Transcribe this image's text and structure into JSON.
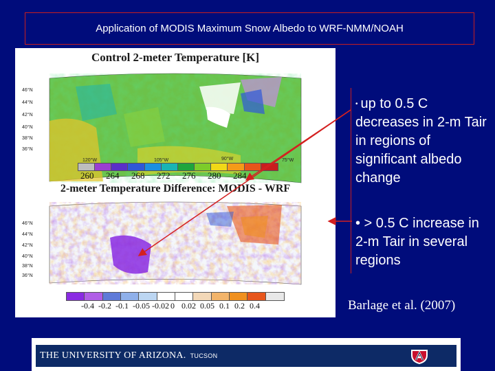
{
  "slide": {
    "title": "Application of MODIS Maximum Snow Albedo to WRF-NMM/NOAH",
    "bullet1_marker": "•",
    "bullet1_text": "up to 0.5 C decreases in 2-m Tair in regions of significant albedo change",
    "bullet2_text": "• > 0.5 C increase in 2-m Tair in several regions",
    "citation": "Barlage et al. (2007)"
  },
  "figure": {
    "top_title": "Control 2-meter Temperature [K]",
    "bottom_title": "2-meter Temperature Difference: MODIS - WRF",
    "top_lon_top": [
      "120°W",
      "105°W",
      "90°W",
      "75°W"
    ],
    "top_lon_bottom": [
      "120°W",
      "105°W",
      "90°W",
      "75°W"
    ],
    "lat_labels": [
      "46°N",
      "44°N",
      "42°N",
      "40°N",
      "38°N",
      "36°N"
    ],
    "top_cbar_labels": [
      "260",
      "264",
      "268",
      "272",
      "276",
      "280",
      "284"
    ],
    "bottom_cbar_labels": [
      "-0.4",
      "-0.2",
      "-0.1",
      "-0.05",
      "-0.02",
      "0",
      "0.02",
      "0.05",
      "0.1",
      "0.2",
      "0.4"
    ],
    "top_cbar_colors": [
      "#bdbdbd",
      "#9b3fd1",
      "#5a2fc8",
      "#2f58d8",
      "#1c8fe0",
      "#19b4b4",
      "#1ea53d",
      "#7ccc2a",
      "#f1d817",
      "#f59a18",
      "#e8541a",
      "#c81e1e"
    ],
    "bottom_cbar_colors": [
      "#8a2be2",
      "#b05ee6",
      "#5f7ad8",
      "#8fb0ea",
      "#bcd6f2",
      "#ffffff",
      "#ffffff",
      "#f3d8b8",
      "#f2b46a",
      "#f0901f",
      "#e7561c",
      "#e8e8e8"
    ]
  },
  "footer": {
    "university": "THE UNIVERSITY OF ARIZONA.",
    "campus": "TUCSON"
  }
}
